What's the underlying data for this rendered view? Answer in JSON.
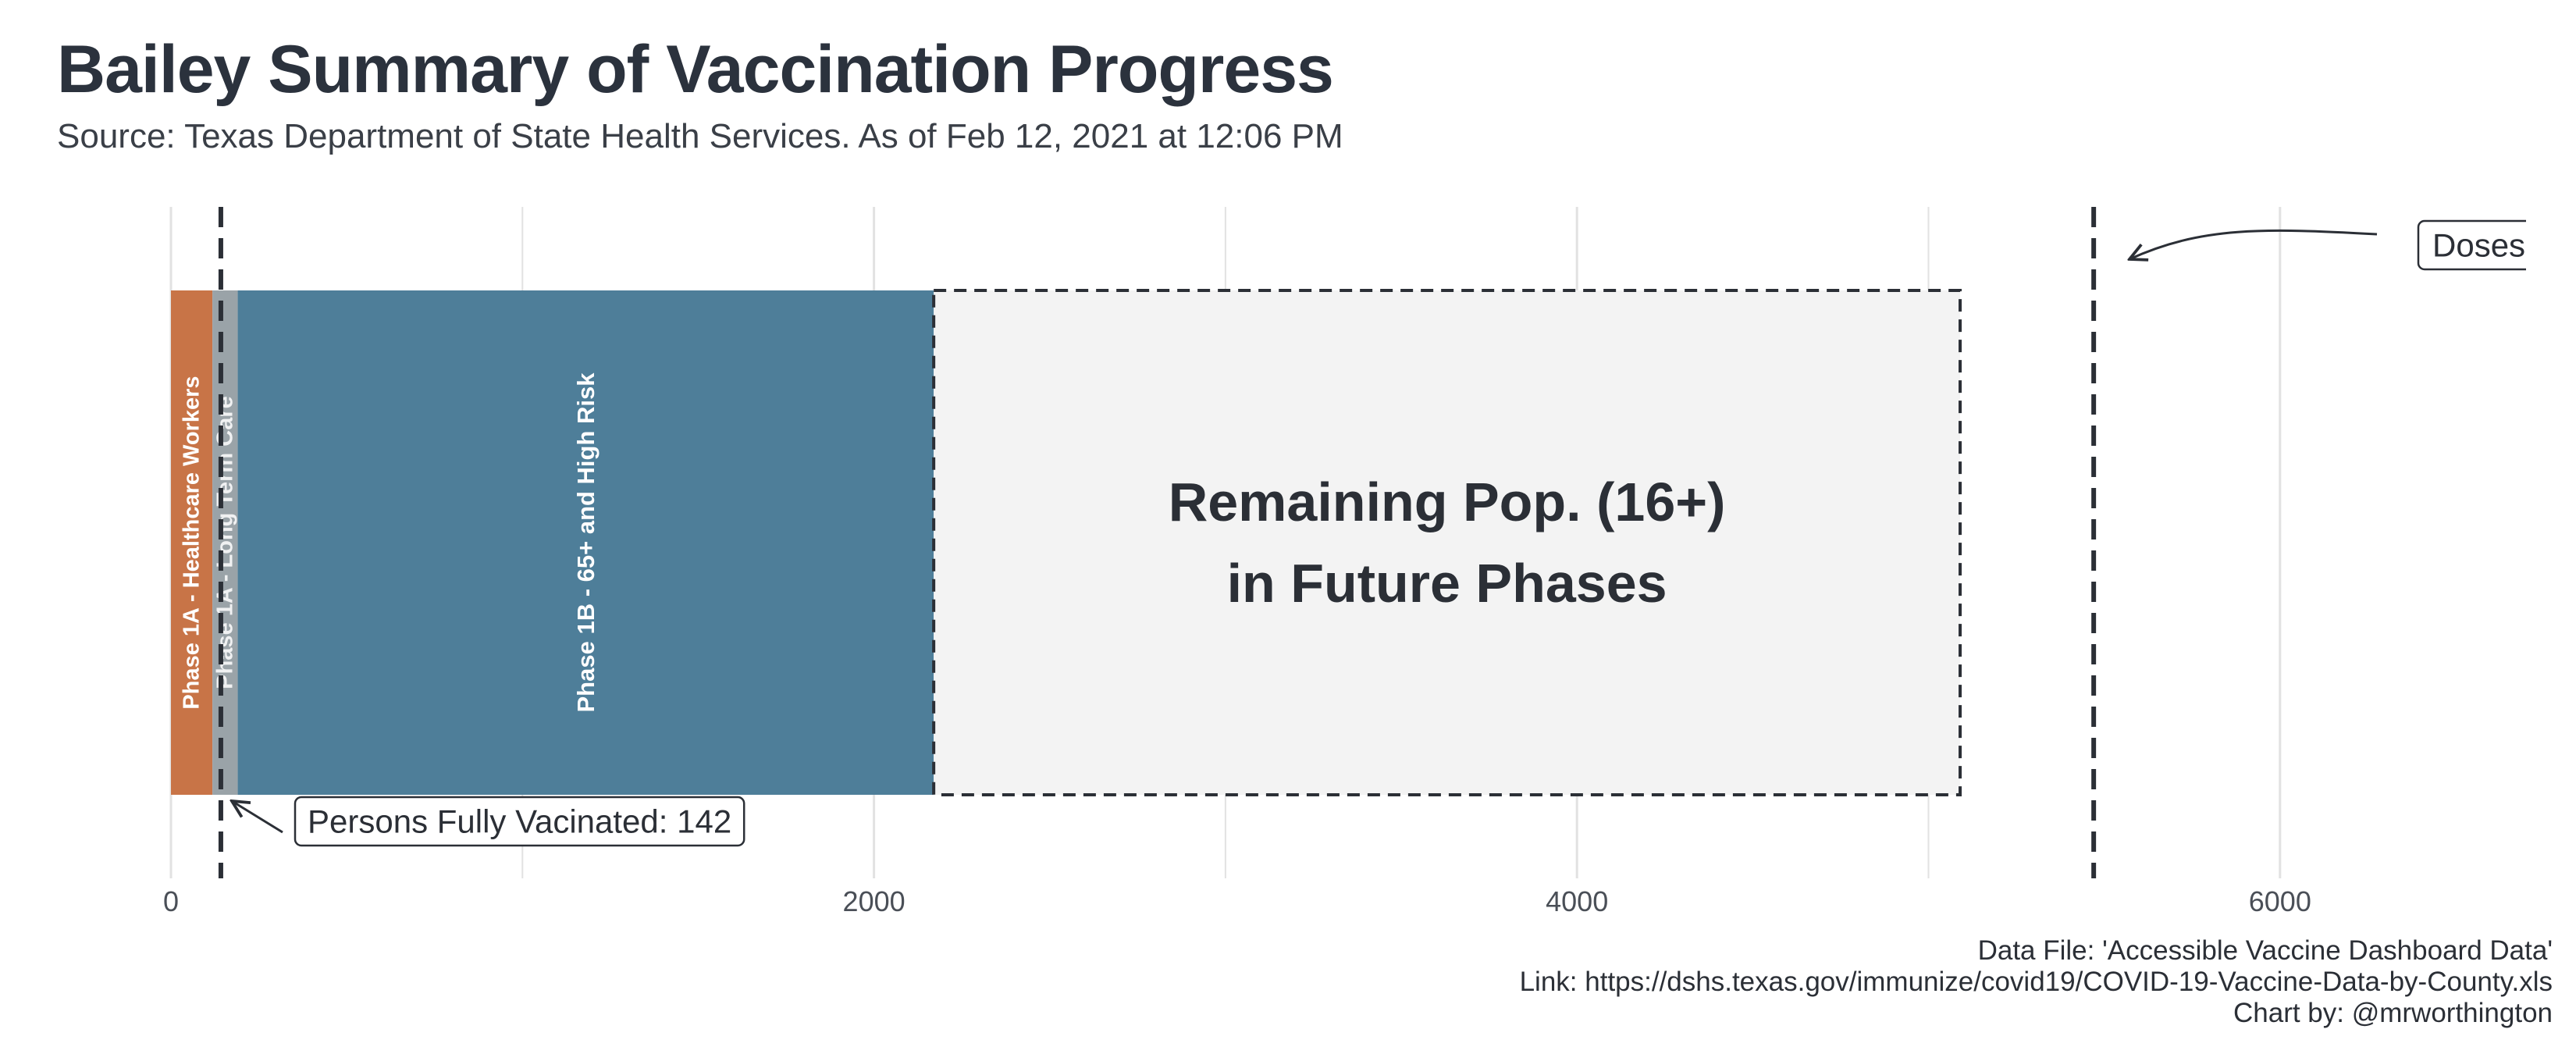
{
  "title": "Bailey Summary of Vaccination Progress",
  "subtitle": "Source: Texas Department of State Health Services. As of Feb 12, 2021 at 12:06 PM",
  "caption": {
    "line1": "Data File: 'Accessible Vaccine Dashboard Data'",
    "line2": "Link: https://dshs.texas.gov/immunize/covid19/COVID-19-Vaccine-Data-by-County.xls",
    "line3": "Chart by: @mrworthington"
  },
  "colors": {
    "phase1a_hcw": "#c87447",
    "phase1a_ltc": "#9aa3a8",
    "phase1b": "#4e7e99",
    "remaining_fill": "#f3f3f3",
    "dashed": "#2b2f36",
    "grid": "#e2e2e2"
  },
  "chart_data": {
    "type": "bar",
    "orientation": "horizontal-stacked",
    "xlim": [
      0,
      6700
    ],
    "x_ticks": [
      0,
      2000,
      4000,
      6000
    ],
    "x_tick_labels": [
      "0",
      "2000",
      "4000",
      "6000"
    ],
    "grid": true,
    "segments": [
      {
        "label": "Phase 1A - Healthcare Workers",
        "start": 0,
        "end": 118,
        "color_key": "phase1a_hcw"
      },
      {
        "label": "Phase 1A - Long Term Care",
        "start": 118,
        "end": 190,
        "color_key": "phase1a_ltc"
      },
      {
        "label": "Phase 1B - 65+ and High Risk",
        "start": 190,
        "end": 2170,
        "color_key": "phase1b"
      },
      {
        "label": "Remaining Pop. (16+)|in Future Phases",
        "start": 2170,
        "end": 5090,
        "color_key": "remaining_fill",
        "dashed": true
      }
    ],
    "reference_lines": [
      {
        "x": 142,
        "label": "Persons Fully Vacinated: 142"
      },
      {
        "x": 5470,
        "label": "Doses"
      }
    ]
  }
}
